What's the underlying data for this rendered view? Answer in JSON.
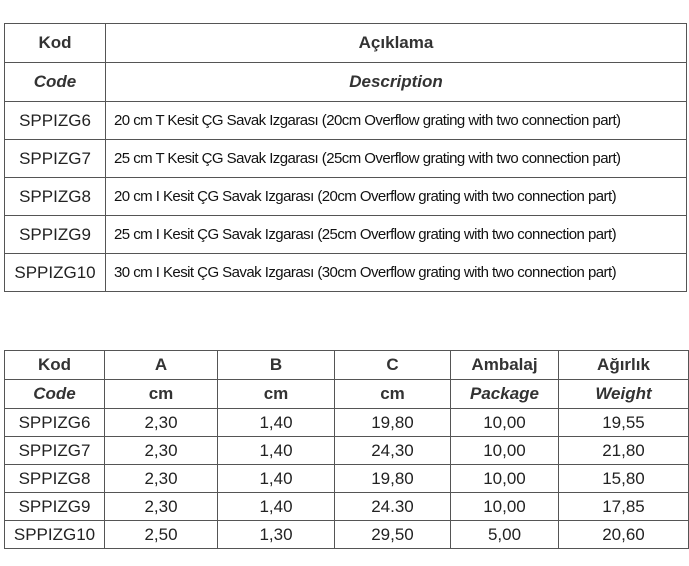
{
  "description_table": {
    "header_tr": {
      "code": "Kod",
      "description": "Açıklama"
    },
    "header_en": {
      "code": "Code",
      "description": "Description"
    },
    "rows": [
      {
        "code": "SPPIZG6",
        "description": "20 cm T Kesit ÇG Savak Izgarası (20cm Overflow grating with two connection part)"
      },
      {
        "code": "SPPIZG7",
        "description": "25 cm T Kesit ÇG Savak Izgarası (25cm Overflow grating with two connection part)"
      },
      {
        "code": "SPPIZG8",
        "description": "20 cm I Kesit ÇG Savak Izgarası (20cm Overflow grating with two connection part)"
      },
      {
        "code": "SPPIZG9",
        "description": "25 cm I Kesit ÇG Savak Izgarası (25cm Overflow grating with two connection part)"
      },
      {
        "code": "SPPIZG10",
        "description": "30 cm I Kesit ÇG Savak Izgarası (30cm Overflow grating with two connection part)"
      }
    ]
  },
  "dimension_table": {
    "header_tr": [
      "Kod",
      "A",
      "B",
      "C",
      "Ambalaj",
      "Ağırlık"
    ],
    "header_en": [
      "Code",
      "cm",
      "cm",
      "cm",
      "Package",
      "Weight"
    ],
    "rows": [
      [
        "SPPIZG6",
        "2,30",
        "1,40",
        "19,80",
        "10,00",
        "19,55"
      ],
      [
        "SPPIZG7",
        "2,30",
        "1,40",
        "24,30",
        "10,00",
        "21,80"
      ],
      [
        "SPPIZG8",
        "2,30",
        "1,40",
        "19,80",
        "10,00",
        "15,80"
      ],
      [
        "SPPIZG9",
        "2,30",
        "1,40",
        "24.30",
        "10,00",
        "17,85"
      ],
      [
        "SPPIZG10",
        "2,50",
        "1,30",
        "29,50",
        "5,00",
        "20,60"
      ]
    ]
  }
}
